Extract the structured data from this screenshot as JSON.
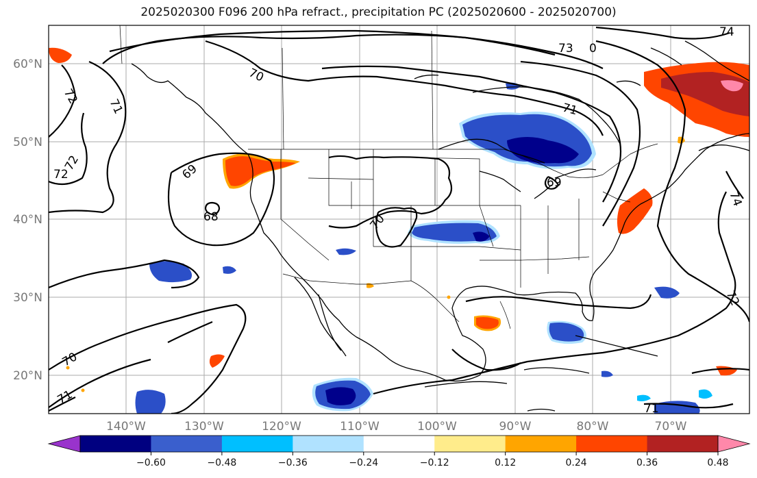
{
  "title": "2025020300 F096 200 hPa refract., precipitation PC (2025020600 - 2025020700)",
  "lat_labels": [
    "60°N",
    "50°N",
    "40°N",
    "30°N",
    "20°N"
  ],
  "lon_labels": [
    "140°W",
    "130°W",
    "120°W",
    "110°W",
    "100°W",
    "90°W",
    "80°W",
    "70°W"
  ],
  "contour_labels": [
    "74",
    "73",
    "70",
    "72",
    "71",
    "72",
    "72",
    "69",
    "68",
    "70",
    "71",
    "69",
    "74",
    "72",
    "70",
    "71",
    "71",
    "0"
  ],
  "colorbar": {
    "ticks": [
      "−0.60",
      "−0.48",
      "−0.36",
      "−0.24",
      "−0.12",
      "0.12",
      "0.24",
      "0.36",
      "0.48",
      "0.60"
    ],
    "colors": [
      "#9933cc",
      "#000080",
      "#3a5fcd",
      "#00bfff",
      "#b0e2ff",
      "#ffffff",
      "#ffec8b",
      "#ffa500",
      "#ff4500",
      "#b22222",
      "#ff88aa"
    ]
  },
  "colors": {
    "dark_blue": "#00008b",
    "medium_blue": "#2b4fc8",
    "light_blue": "#b0e2ff",
    "cyan": "#00bfff",
    "red_orange": "#ff4500",
    "dark_red": "#b22222",
    "pink": "#ff88aa",
    "yellow": "#ffec8b"
  }
}
